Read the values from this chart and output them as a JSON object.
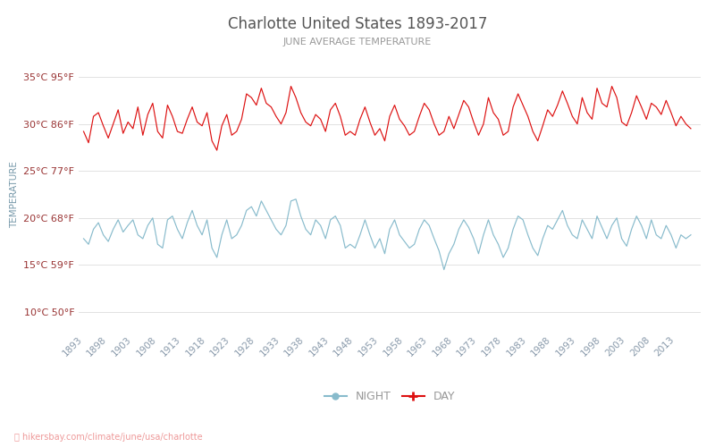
{
  "title": "Charlotte United States 1893-2017",
  "subtitle": "JUNE AVERAGE TEMPERATURE",
  "ylabel": "TEMPERATURE",
  "years_start": 1893,
  "years_end": 2017,
  "yticks_c": [
    10,
    15,
    20,
    25,
    30,
    35
  ],
  "yticks_f": [
    50,
    59,
    68,
    77,
    86,
    95
  ],
  "ylim": [
    8,
    37
  ],
  "xlim_left": 1892,
  "xlim_right": 2018,
  "xticks": [
    1893,
    1898,
    1903,
    1908,
    1913,
    1918,
    1923,
    1928,
    1933,
    1938,
    1943,
    1948,
    1953,
    1958,
    1963,
    1968,
    1973,
    1978,
    1983,
    1988,
    1993,
    1998,
    2003,
    2008,
    2013
  ],
  "day_color": "#dd1111",
  "night_color": "#88bbcc",
  "grid_color": "#dddddd",
  "title_color": "#555555",
  "subtitle_color": "#999999",
  "ylabel_color": "#7799aa",
  "ytick_label_color": "#993333",
  "xtick_label_color": "#8899aa",
  "watermark_text": "hikersbay.com/climate/june/usa/charlotte",
  "watermark_color": "#ee9999",
  "legend_night": "NIGHT",
  "legend_day": "DAY",
  "background_color": "#ffffff",
  "day_temps": [
    29.2,
    28.0,
    30.8,
    31.2,
    29.8,
    28.5,
    30.0,
    31.5,
    29.0,
    30.2,
    29.5,
    31.8,
    28.8,
    31.0,
    32.2,
    29.2,
    28.5,
    32.0,
    30.8,
    29.2,
    29.0,
    30.5,
    31.8,
    30.2,
    29.8,
    31.2,
    28.2,
    27.2,
    29.8,
    31.0,
    28.8,
    29.2,
    30.5,
    33.2,
    32.8,
    32.0,
    33.8,
    32.2,
    31.8,
    30.8,
    30.0,
    31.2,
    34.0,
    32.8,
    31.2,
    30.2,
    29.8,
    31.0,
    30.5,
    29.2,
    31.5,
    32.2,
    30.8,
    28.8,
    29.2,
    28.8,
    30.5,
    31.8,
    30.2,
    28.8,
    29.5,
    28.2,
    30.8,
    32.0,
    30.5,
    29.8,
    28.8,
    29.2,
    30.8,
    32.2,
    31.5,
    30.0,
    28.8,
    29.2,
    30.8,
    29.5,
    31.0,
    32.5,
    31.8,
    30.2,
    28.8,
    30.0,
    32.8,
    31.2,
    30.5,
    28.8,
    29.2,
    31.8,
    33.2,
    32.0,
    30.8,
    29.2,
    28.2,
    29.8,
    31.5,
    30.8,
    32.0,
    33.5,
    32.2,
    30.8,
    30.0,
    32.8,
    31.2,
    30.5,
    33.8,
    32.2,
    31.8,
    34.0,
    32.8,
    30.2,
    29.8,
    31.2,
    33.0,
    31.8,
    30.5,
    32.2,
    31.8,
    31.0,
    32.5,
    31.2,
    29.8,
    30.8,
    30.0,
    29.5
  ],
  "night_temps": [
    17.8,
    17.2,
    18.8,
    19.5,
    18.2,
    17.5,
    18.8,
    19.8,
    18.5,
    19.2,
    19.8,
    18.2,
    17.8,
    19.2,
    20.0,
    17.2,
    16.8,
    19.8,
    20.2,
    18.8,
    17.8,
    19.5,
    20.8,
    19.2,
    18.2,
    19.8,
    16.8,
    15.8,
    18.2,
    19.8,
    17.8,
    18.2,
    19.2,
    20.8,
    21.2,
    20.2,
    21.8,
    20.8,
    19.8,
    18.8,
    18.2,
    19.2,
    21.8,
    22.0,
    20.2,
    18.8,
    18.2,
    19.8,
    19.2,
    17.8,
    19.8,
    20.2,
    19.2,
    16.8,
    17.2,
    16.8,
    18.2,
    19.8,
    18.2,
    16.8,
    17.8,
    16.2,
    18.8,
    19.8,
    18.2,
    17.5,
    16.8,
    17.2,
    18.8,
    19.8,
    19.2,
    17.8,
    16.5,
    14.5,
    16.2,
    17.2,
    18.8,
    19.8,
    19.0,
    17.8,
    16.2,
    18.2,
    19.8,
    18.2,
    17.2,
    15.8,
    16.8,
    18.8,
    20.2,
    19.8,
    18.2,
    16.8,
    16.0,
    17.8,
    19.2,
    18.8,
    19.8,
    20.8,
    19.2,
    18.2,
    17.8,
    19.8,
    18.8,
    17.8,
    20.2,
    19.0,
    17.8,
    19.2,
    20.0,
    17.8,
    17.0,
    18.8,
    20.2,
    19.2,
    17.8,
    19.8,
    18.2,
    17.8,
    19.2,
    18.2,
    16.8,
    18.2,
    17.8,
    18.2
  ]
}
